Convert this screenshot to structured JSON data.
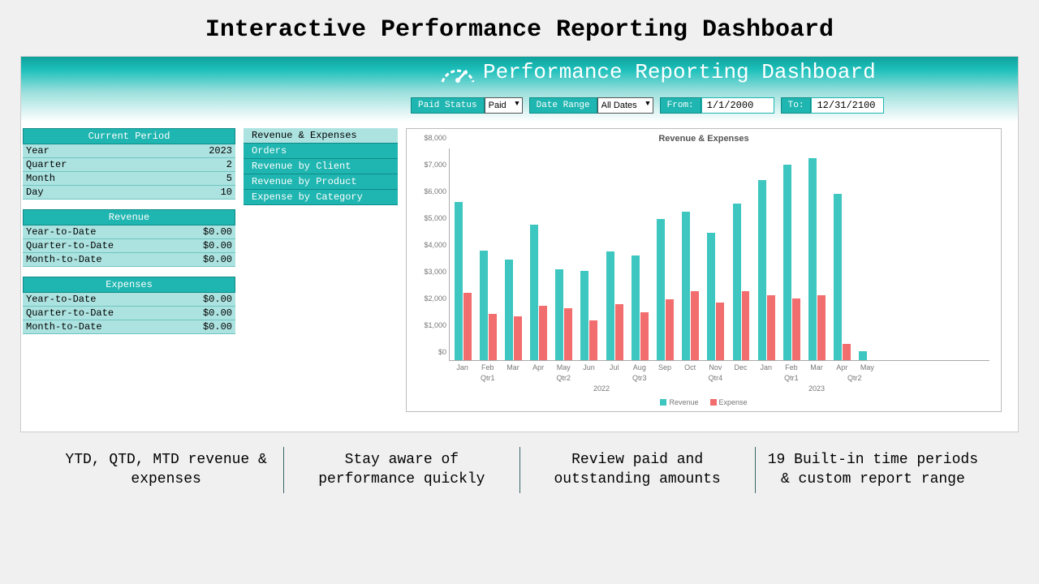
{
  "page_title": "Interactive Performance Reporting Dashboard",
  "banner_title": "Performance Reporting Dashboard",
  "colors": {
    "teal": "#1fb5b0",
    "teal_dark": "#0e8c88",
    "teal_light": "#ace3e0",
    "revenue_bar": "#3ec6c1",
    "expense_bar": "#f26d6d",
    "page_bg": "#f0f0f0"
  },
  "filters": {
    "paid_label": "Paid Status",
    "paid_value": "Paid",
    "range_label": "Date Range",
    "range_value": "All Dates",
    "from_label": "From:",
    "from_value": "1/1/2000",
    "to_label": "To:",
    "to_value": "12/31/2100"
  },
  "panels": {
    "period": {
      "header": "Current Period",
      "rows": [
        {
          "label": "Year",
          "value": "2023"
        },
        {
          "label": "Quarter",
          "value": "2"
        },
        {
          "label": "Month",
          "value": "5"
        },
        {
          "label": "Day",
          "value": "10"
        }
      ]
    },
    "revenue": {
      "header": "Revenue",
      "rows": [
        {
          "label": "Year-to-Date",
          "value": "$0.00"
        },
        {
          "label": "Quarter-to-Date",
          "value": "$0.00"
        },
        {
          "label": "Month-to-Date",
          "value": "$0.00"
        }
      ]
    },
    "expenses": {
      "header": "Expenses",
      "rows": [
        {
          "label": "Year-to-Date",
          "value": "$0.00"
        },
        {
          "label": "Quarter-to-Date",
          "value": "$0.00"
        },
        {
          "label": "Month-to-Date",
          "value": "$0.00"
        }
      ]
    }
  },
  "tabs": [
    {
      "label": "Revenue & Expenses",
      "active": true
    },
    {
      "label": "Orders",
      "active": false
    },
    {
      "label": "Revenue by Client",
      "active": false
    },
    {
      "label": "Revenue by Product",
      "active": false
    },
    {
      "label": "Expense by Category",
      "active": false
    }
  ],
  "chart": {
    "title": "Revenue & Expenses",
    "type": "bar",
    "y_max": 8000,
    "y_ticks": [
      0,
      1000,
      2000,
      3000,
      4000,
      5000,
      6000,
      7000,
      8000
    ],
    "y_tick_labels": [
      "$0",
      "$1,000",
      "$2,000",
      "$3,000",
      "$4,000",
      "$5,000",
      "$6,000",
      "$7,000",
      "$8,000"
    ],
    "months": [
      "Jan",
      "Feb",
      "Mar",
      "Apr",
      "May",
      "Jun",
      "Jul",
      "Aug",
      "Sep",
      "Oct",
      "Nov",
      "Dec",
      "Jan",
      "Feb",
      "Mar",
      "Apr",
      "May"
    ],
    "quarters": [
      {
        "label": "Qtr1",
        "span": [
          0,
          2
        ]
      },
      {
        "label": "Qtr2",
        "span": [
          3,
          5
        ]
      },
      {
        "label": "Qtr3",
        "span": [
          6,
          8
        ]
      },
      {
        "label": "Qtr4",
        "span": [
          9,
          11
        ]
      },
      {
        "label": "Qtr1",
        "span": [
          12,
          14
        ]
      },
      {
        "label": "Qtr2",
        "span": [
          15,
          16
        ]
      }
    ],
    "years": [
      {
        "label": "2022",
        "span": [
          0,
          11
        ]
      },
      {
        "label": "2023",
        "span": [
          12,
          16
        ]
      }
    ],
    "revenue": [
      5900,
      4100,
      3750,
      5050,
      3400,
      3320,
      4050,
      3900,
      5280,
      5550,
      4760,
      5850,
      6720,
      7300,
      7560,
      6200,
      320
    ],
    "expense": [
      2520,
      1720,
      1650,
      2020,
      1940,
      1480,
      2080,
      1780,
      2270,
      2580,
      2140,
      2580,
      2410,
      2300,
      2420,
      620,
      0
    ],
    "legend": [
      "Revenue",
      "Expense"
    ],
    "bar_colors": {
      "revenue": "#3ec6c1",
      "expense": "#f26d6d"
    }
  },
  "footer": [
    "YTD, QTD, MTD revenue & expenses",
    "Stay aware of performance quickly",
    "Review paid and outstanding amounts",
    "19 Built-in time periods & custom report range"
  ]
}
